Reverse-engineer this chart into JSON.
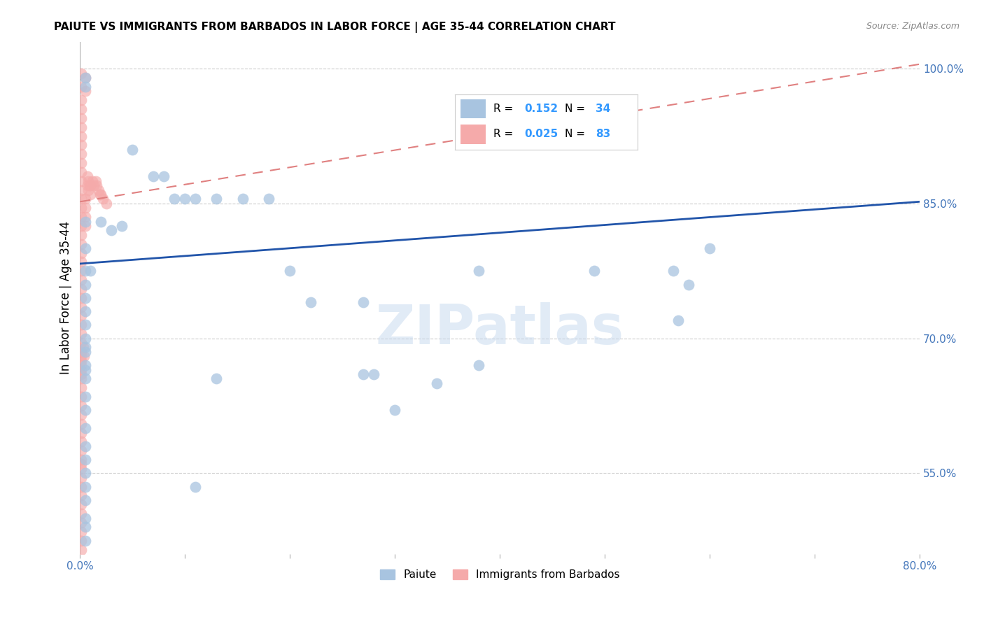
{
  "title": "PAIUTE VS IMMIGRANTS FROM BARBADOS IN LABOR FORCE | AGE 35-44 CORRELATION CHART",
  "source": "Source: ZipAtlas.com",
  "ylabel": "In Labor Force | Age 35-44",
  "xlim": [
    0.0,
    0.8
  ],
  "ylim": [
    0.46,
    1.03
  ],
  "yticks": [
    0.55,
    0.7,
    0.85,
    1.0
  ],
  "ytick_labels": [
    "55.0%",
    "70.0%",
    "85.0%",
    "100.0%"
  ],
  "xtick_positions": [
    0.0,
    0.1,
    0.2,
    0.3,
    0.4,
    0.5,
    0.6,
    0.7,
    0.8
  ],
  "xtick_labels": [
    "0.0%",
    "",
    "",
    "",
    "",
    "",
    "",
    "",
    "80.0%"
  ],
  "legend_label1": "Paiute",
  "legend_label2": "Immigrants from Barbados",
  "blue_scatter_color": "#A8C4E0",
  "pink_scatter_color": "#F5AAAA",
  "blue_line_color": "#2255AA",
  "pink_line_color": "#E08080",
  "tick_color": "#4477BB",
  "background_color": "#FFFFFF",
  "watermark": "ZIPatlas",
  "blue_line_y0": 0.783,
  "blue_line_y1": 0.852,
  "pink_line_y0": 0.852,
  "pink_line_y1": 1.005,
  "paiute_points": [
    [
      0.005,
      0.99
    ],
    [
      0.005,
      0.98
    ],
    [
      0.05,
      0.91
    ],
    [
      0.07,
      0.88
    ],
    [
      0.08,
      0.88
    ],
    [
      0.09,
      0.855
    ],
    [
      0.1,
      0.855
    ],
    [
      0.11,
      0.855
    ],
    [
      0.13,
      0.855
    ],
    [
      0.155,
      0.855
    ],
    [
      0.18,
      0.855
    ],
    [
      0.005,
      0.83
    ],
    [
      0.02,
      0.83
    ],
    [
      0.03,
      0.82
    ],
    [
      0.04,
      0.825
    ],
    [
      0.005,
      0.8
    ],
    [
      0.005,
      0.775
    ],
    [
      0.01,
      0.775
    ],
    [
      0.005,
      0.76
    ],
    [
      0.005,
      0.745
    ],
    [
      0.005,
      0.73
    ],
    [
      0.005,
      0.715
    ],
    [
      0.005,
      0.7
    ],
    [
      0.005,
      0.685
    ],
    [
      0.005,
      0.665
    ],
    [
      0.2,
      0.775
    ],
    [
      0.38,
      0.775
    ],
    [
      0.49,
      0.775
    ],
    [
      0.565,
      0.775
    ],
    [
      0.22,
      0.74
    ],
    [
      0.27,
      0.74
    ],
    [
      0.38,
      0.67
    ],
    [
      0.6,
      0.8
    ],
    [
      0.58,
      0.76
    ],
    [
      0.57,
      0.72
    ],
    [
      0.005,
      0.69
    ],
    [
      0.005,
      0.67
    ],
    [
      0.005,
      0.655
    ],
    [
      0.27,
      0.66
    ],
    [
      0.28,
      0.66
    ],
    [
      0.34,
      0.65
    ],
    [
      0.005,
      0.635
    ],
    [
      0.005,
      0.62
    ],
    [
      0.005,
      0.6
    ],
    [
      0.13,
      0.655
    ],
    [
      0.005,
      0.58
    ],
    [
      0.005,
      0.565
    ],
    [
      0.005,
      0.55
    ],
    [
      0.3,
      0.62
    ],
    [
      0.005,
      0.535
    ],
    [
      0.005,
      0.52
    ],
    [
      0.11,
      0.535
    ],
    [
      0.005,
      0.5
    ],
    [
      0.005,
      0.49
    ],
    [
      0.005,
      0.475
    ]
  ],
  "barbados_points": [
    [
      0.001,
      0.995
    ],
    [
      0.001,
      0.98
    ],
    [
      0.001,
      0.965
    ],
    [
      0.001,
      0.955
    ],
    [
      0.001,
      0.945
    ],
    [
      0.001,
      0.935
    ],
    [
      0.001,
      0.925
    ],
    [
      0.001,
      0.915
    ],
    [
      0.001,
      0.905
    ],
    [
      0.001,
      0.895
    ],
    [
      0.001,
      0.885
    ],
    [
      0.001,
      0.875
    ],
    [
      0.001,
      0.865
    ],
    [
      0.001,
      0.855
    ],
    [
      0.001,
      0.845
    ],
    [
      0.001,
      0.835
    ],
    [
      0.001,
      0.825
    ],
    [
      0.001,
      0.815
    ],
    [
      0.001,
      0.805
    ],
    [
      0.001,
      0.795
    ],
    [
      0.001,
      0.785
    ],
    [
      0.001,
      0.775
    ],
    [
      0.001,
      0.765
    ],
    [
      0.001,
      0.755
    ],
    [
      0.001,
      0.745
    ],
    [
      0.001,
      0.735
    ],
    [
      0.001,
      0.725
    ],
    [
      0.001,
      0.715
    ],
    [
      0.001,
      0.705
    ],
    [
      0.001,
      0.695
    ],
    [
      0.001,
      0.685
    ],
    [
      0.001,
      0.675
    ],
    [
      0.001,
      0.665
    ],
    [
      0.001,
      0.655
    ],
    [
      0.001,
      0.645
    ],
    [
      0.001,
      0.635
    ],
    [
      0.001,
      0.625
    ],
    [
      0.001,
      0.615
    ],
    [
      0.001,
      0.605
    ],
    [
      0.001,
      0.595
    ],
    [
      0.001,
      0.585
    ],
    [
      0.001,
      0.575
    ],
    [
      0.001,
      0.565
    ],
    [
      0.001,
      0.555
    ],
    [
      0.001,
      0.545
    ],
    [
      0.001,
      0.535
    ],
    [
      0.001,
      0.525
    ],
    [
      0.001,
      0.515
    ],
    [
      0.001,
      0.505
    ],
    [
      0.001,
      0.495
    ],
    [
      0.001,
      0.485
    ],
    [
      0.001,
      0.475
    ],
    [
      0.001,
      0.465
    ],
    [
      0.005,
      0.99
    ],
    [
      0.005,
      0.975
    ],
    [
      0.005,
      0.855
    ],
    [
      0.005,
      0.845
    ],
    [
      0.005,
      0.835
    ],
    [
      0.005,
      0.825
    ],
    [
      0.007,
      0.88
    ],
    [
      0.007,
      0.87
    ],
    [
      0.008,
      0.875
    ],
    [
      0.008,
      0.865
    ],
    [
      0.009,
      0.87
    ],
    [
      0.01,
      0.87
    ],
    [
      0.01,
      0.86
    ],
    [
      0.012,
      0.875
    ],
    [
      0.013,
      0.87
    ],
    [
      0.015,
      0.875
    ],
    [
      0.016,
      0.87
    ],
    [
      0.018,
      0.865
    ],
    [
      0.019,
      0.86
    ],
    [
      0.02,
      0.86
    ],
    [
      0.022,
      0.855
    ],
    [
      0.025,
      0.85
    ],
    [
      0.001,
      0.68
    ],
    [
      0.001,
      0.67
    ],
    [
      0.001,
      0.66
    ],
    [
      0.003,
      0.69
    ],
    [
      0.004,
      0.68
    ],
    [
      0.001,
      0.56
    ]
  ]
}
